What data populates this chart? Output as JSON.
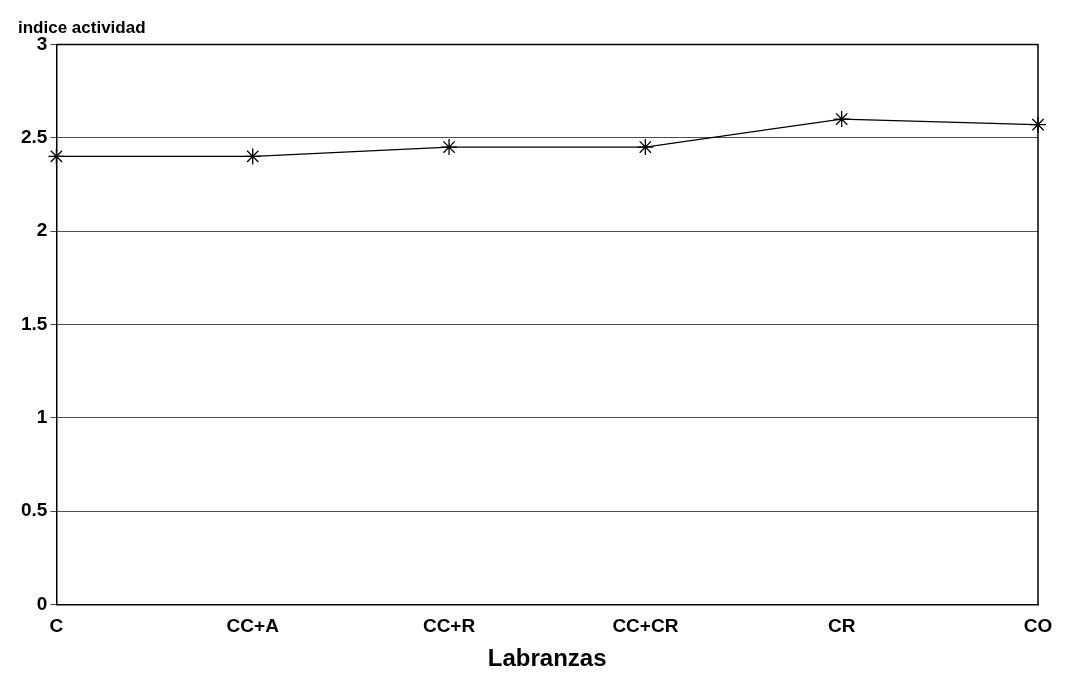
{
  "chart_data": {
    "type": "line",
    "ylabel": "indice actividad",
    "xlabel": "Labranzas",
    "categories": [
      "C",
      "CC+A",
      "CC+R",
      "CC+CR",
      "CR",
      "CO"
    ],
    "values": [
      2.4,
      2.4,
      2.45,
      2.45,
      2.6,
      2.57
    ],
    "color": "#000000",
    "ylim": [
      0,
      3
    ],
    "yticks": [
      0,
      0.5,
      1,
      1.5,
      2,
      2.5,
      3
    ],
    "grid": "y",
    "marker": "cross",
    "line_style": "solid",
    "legend": false
  }
}
